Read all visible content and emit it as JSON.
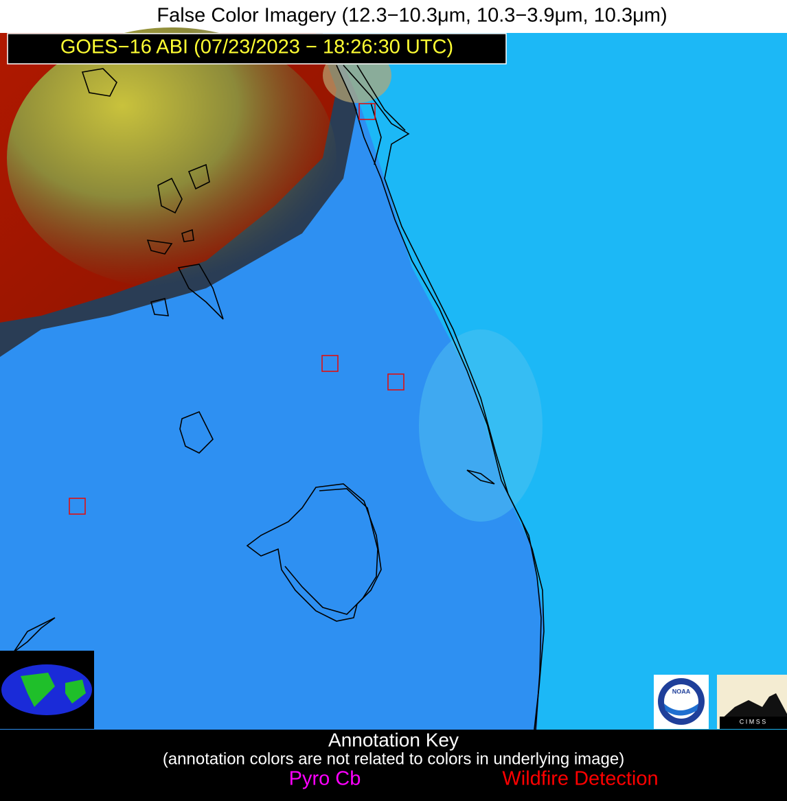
{
  "header": {
    "title": "False Color Imagery (12.3−10.3μm, 10.3−3.9μm, 10.3μm)",
    "subtitle": "GOES−16 ABI (07/23/2023 − 18:26:30 UTC)"
  },
  "logos": {
    "noaa": "NOAA",
    "cimss": "C I M S S"
  },
  "legend": {
    "title": "Annotation Key",
    "note": "(annotation colors are not related to colors in underlying image)",
    "items": [
      "Pyro Cb",
      "Wildfire Detection"
    ]
  }
}
